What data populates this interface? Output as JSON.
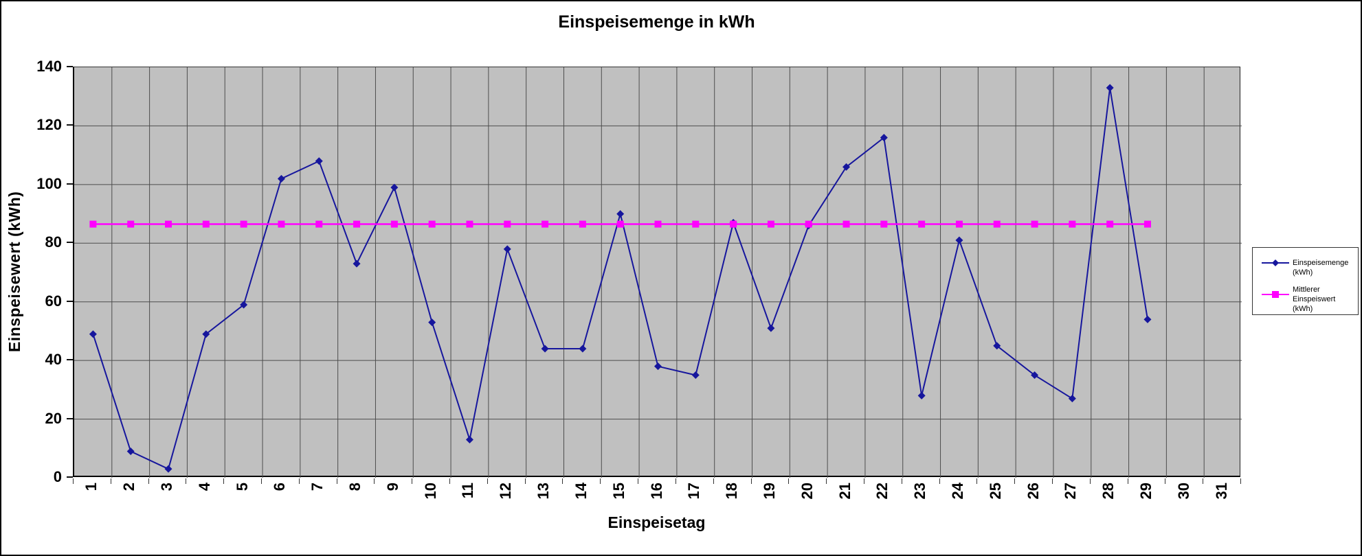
{
  "chart": {
    "title": "Einspeisemenge in kWh",
    "y_axis_title": "Einspeisewert  (kWh)",
    "x_axis_title": "Einspeisetag",
    "plot_background": "#c0c0c0",
    "gridline_color": "#4d4d4d",
    "axis_color": "#000000"
  },
  "legend": {
    "items": [
      {
        "label": "Einspeisemenge (kWh)",
        "color": "#16169d",
        "marker": "diamond"
      },
      {
        "label": "Mittlerer Einspeiswert (kWh)",
        "color": "#ff00ff",
        "marker": "square"
      }
    ]
  },
  "chart_data": {
    "type": "line",
    "title": "Einspeisemenge in kWh",
    "xlabel": "Einspeisetag",
    "ylabel": "Einspeisewert  (kWh)",
    "categories": [
      1,
      2,
      3,
      4,
      5,
      6,
      7,
      8,
      9,
      10,
      11,
      12,
      13,
      14,
      15,
      16,
      17,
      18,
      19,
      20,
      21,
      22,
      23,
      24,
      25,
      26,
      27,
      28,
      29,
      30,
      31
    ],
    "ylim": [
      0,
      140
    ],
    "y_ticks": [
      0,
      20,
      40,
      60,
      80,
      100,
      120,
      140
    ],
    "grid": "both",
    "legend_position": "right",
    "series": [
      {
        "name": "Einspeisemenge (kWh)",
        "color": "#16169d",
        "marker": "diamond",
        "x": [
          1,
          2,
          3,
          4,
          5,
          6,
          7,
          8,
          9,
          10,
          11,
          12,
          13,
          14,
          15,
          16,
          17,
          18,
          19,
          20,
          21,
          22,
          23,
          24,
          25,
          26,
          27,
          28,
          29
        ],
        "values": [
          49,
          9,
          3,
          49,
          59,
          102,
          108,
          73,
          99,
          53,
          13,
          78,
          44,
          44,
          90,
          38,
          35,
          87,
          51,
          86,
          106,
          116,
          28,
          81,
          45,
          35,
          27,
          133,
          54
        ]
      },
      {
        "name": "Mittlerer Einspeiswert (kWh)",
        "color": "#ff00ff",
        "marker": "square",
        "x": [
          1,
          2,
          3,
          4,
          5,
          6,
          7,
          8,
          9,
          10,
          11,
          12,
          13,
          14,
          15,
          16,
          17,
          18,
          19,
          20,
          21,
          22,
          23,
          24,
          25,
          26,
          27,
          28,
          29
        ],
        "values": [
          86.5,
          86.5,
          86.5,
          86.5,
          86.5,
          86.5,
          86.5,
          86.5,
          86.5,
          86.5,
          86.5,
          86.5,
          86.5,
          86.5,
          86.5,
          86.5,
          86.5,
          86.5,
          86.5,
          86.5,
          86.5,
          86.5,
          86.5,
          86.5,
          86.5,
          86.5,
          86.5,
          86.5,
          86.5
        ]
      }
    ]
  }
}
